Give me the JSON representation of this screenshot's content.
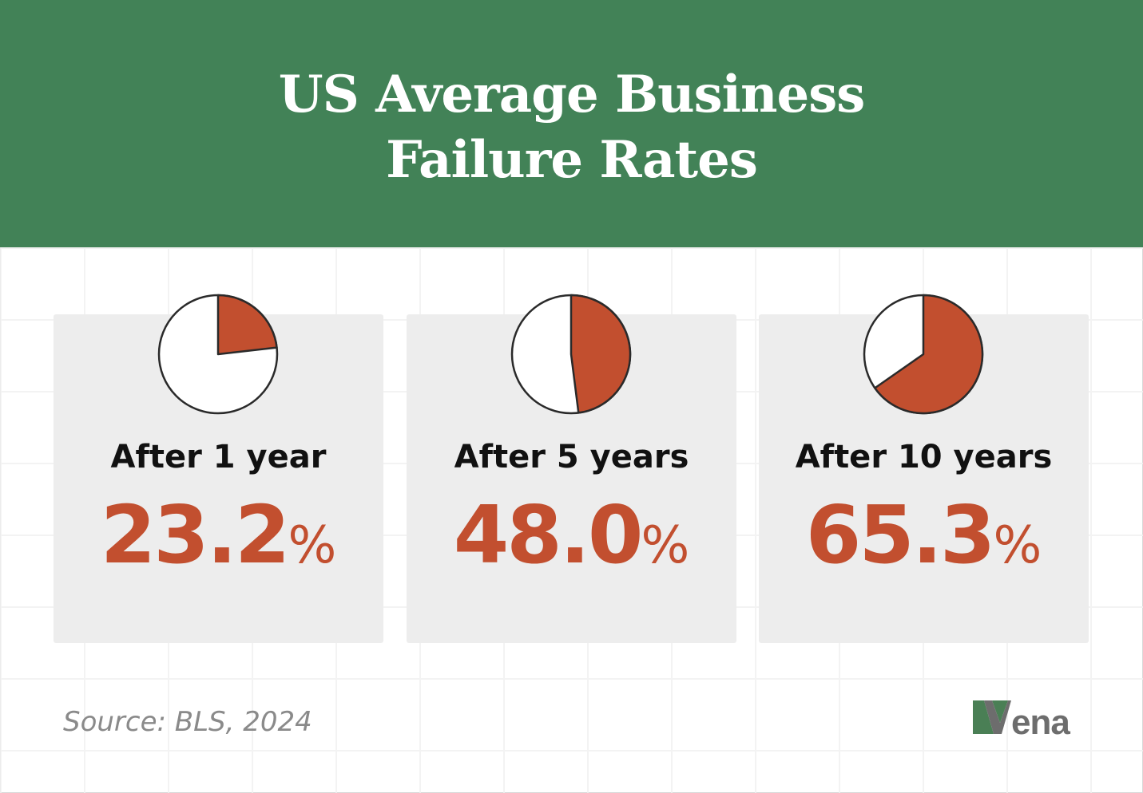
{
  "title_lines": [
    "US Average Business",
    "Failure Rates"
  ],
  "chart_data": [
    {
      "type": "pie",
      "label": "After 1 year",
      "value": 23.2,
      "value_text": "23.2",
      "unit": "%"
    },
    {
      "type": "pie",
      "label": "After 5 years",
      "value": 48.0,
      "value_text": "48.0",
      "unit": "%"
    },
    {
      "type": "pie",
      "label": "After 10 years",
      "value": 65.3,
      "value_text": "65.3",
      "unit": "%"
    }
  ],
  "colors": {
    "header": "#428257",
    "accent": "#c24f2f",
    "card": "#ededed"
  },
  "source": "Source: BLS, 2024",
  "logo": "vena"
}
